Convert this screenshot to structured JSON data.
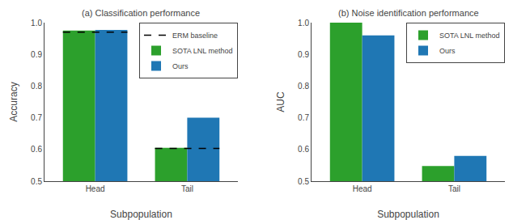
{
  "chart_data": [
    {
      "type": "bar",
      "title": "(a) Classification performance",
      "xlabel": "Subpopulation",
      "ylabel": "Accuracy",
      "categories": [
        "Head",
        "Tail"
      ],
      "series": [
        {
          "name": "ERM baseline",
          "type": "line",
          "line_style": "dashed",
          "color": "black",
          "values": [
            0.97,
            0.603
          ]
        },
        {
          "name": "SOTA LNL method",
          "color": "#2ca02c",
          "values": [
            0.975,
            0.605
          ]
        },
        {
          "name": "Ours",
          "color": "#1f77b4",
          "values": [
            0.977,
            0.7
          ]
        }
      ],
      "ylim": [
        0.5,
        1.0
      ],
      "yticks": [
        0.5,
        0.6,
        0.7,
        0.8,
        0.9,
        {
          "value": 1.0,
          "label": "1.0"
        }
      ],
      "grid": false,
      "legend": "upper right"
    },
    {
      "type": "bar",
      "title": "(b) Noise identification performance",
      "xlabel": "Subpopulation",
      "ylabel": "AUC",
      "categories": [
        "Head",
        "Tail"
      ],
      "series": [
        {
          "name": "SOTA LNL method",
          "color": "#2ca02c",
          "values": [
            1.0,
            0.548
          ]
        },
        {
          "name": "Ours",
          "color": "#1f77b4",
          "values": [
            0.96,
            0.58
          ]
        }
      ],
      "ylim": [
        0.5,
        1.0
      ],
      "yticks": [
        0.5,
        0.6,
        0.7,
        0.8,
        0.9,
        {
          "value": 1.0,
          "label": "1.0"
        }
      ],
      "grid": false,
      "legend": "upper right"
    }
  ]
}
